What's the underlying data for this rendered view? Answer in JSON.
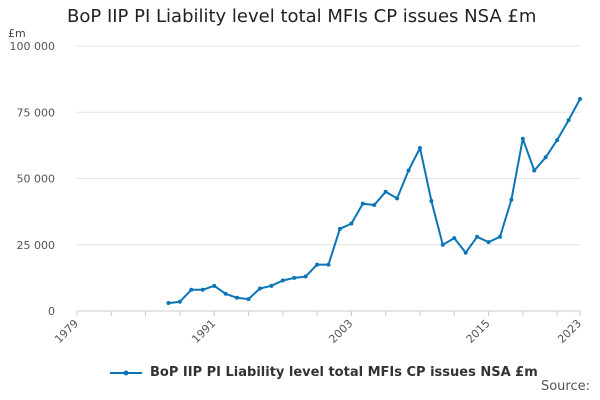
{
  "title": "BoP IIP PI Liability level total MFIs CP issues NSA £m",
  "unit_label": "£m",
  "source_label": "Source:",
  "colors": {
    "series": "#0a76b7",
    "grid": "#e3e3e3",
    "axis": "#cccccc"
  },
  "chart_data": {
    "type": "line",
    "title": "BoP IIP PI Liability level total MFIs CP issues NSA £m",
    "ylabel": "£m",
    "xlabel": "",
    "xlim": [
      1979,
      2023
    ],
    "ylim": [
      0,
      100000
    ],
    "y_ticks": [
      0,
      25000,
      50000,
      75000,
      100000
    ],
    "y_tick_labels": [
      "0",
      "25 000",
      "50 000",
      "75 000",
      "100 000"
    ],
    "x_ticks": [
      1979,
      1991,
      2003,
      2015,
      2023
    ],
    "grid": true,
    "legend": "bottom",
    "series": [
      {
        "name": "BoP IIP PI Liability level total MFIs CP issues NSA £m",
        "x": [
          1987,
          1988,
          1989,
          1990,
          1991,
          1992,
          1993,
          1994,
          1995,
          1996,
          1997,
          1998,
          1999,
          2000,
          2001,
          2002,
          2003,
          2004,
          2005,
          2006,
          2007,
          2008,
          2009,
          2010,
          2011,
          2012,
          2013,
          2014,
          2015,
          2016,
          2017,
          2018,
          2019,
          2020,
          2021,
          2022,
          2023
        ],
        "values": [
          3000,
          3500,
          8000,
          8000,
          9500,
          6500,
          5000,
          4500,
          8500,
          9500,
          11500,
          12500,
          13000,
          17500,
          17500,
          31000,
          33000,
          40500,
          40000,
          45000,
          42500,
          53000,
          61500,
          41500,
          25000,
          27500,
          22000,
          28000,
          26000,
          28000,
          42000,
          65000,
          53000,
          58000,
          64500,
          72000,
          80000
        ]
      }
    ]
  }
}
